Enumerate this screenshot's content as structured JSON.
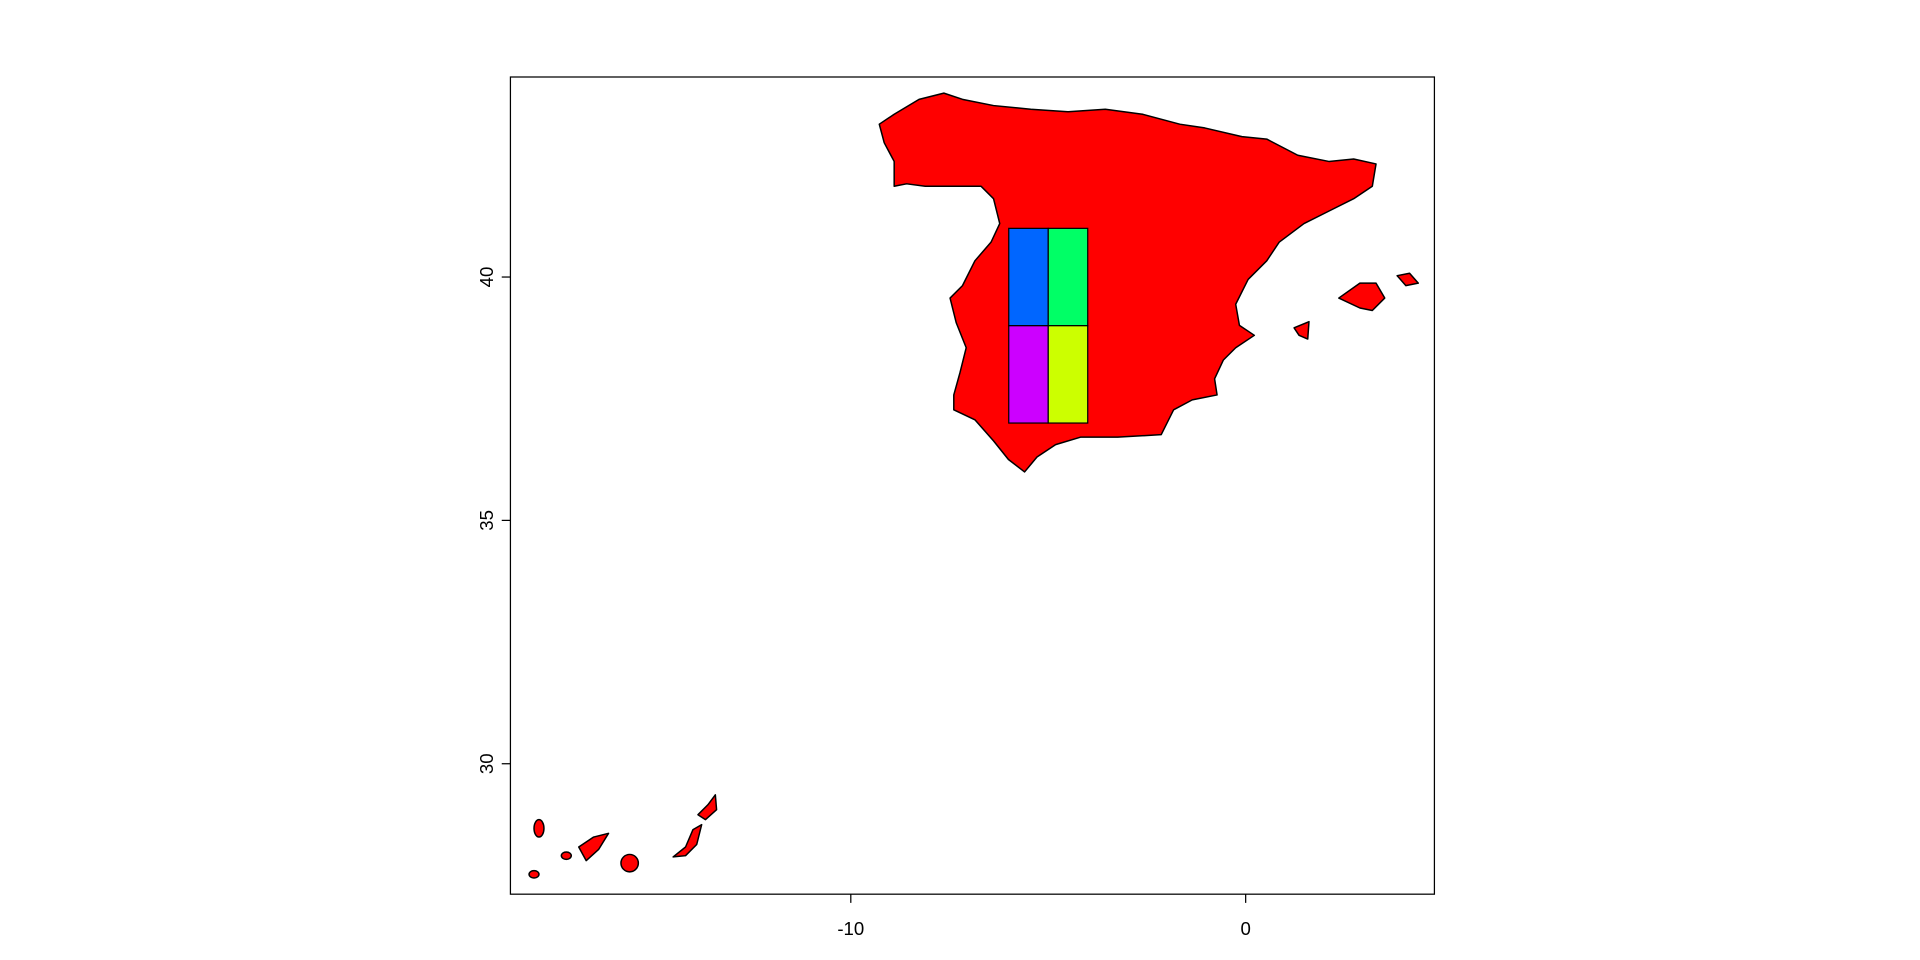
{
  "chart_data": {
    "type": "map",
    "xlim": [
      -18.62,
      4.78
    ],
    "ylim": [
      27.32,
      44.11
    ],
    "xticks": [
      -10,
      0
    ],
    "yticks": [
      30,
      35,
      40
    ],
    "land_color": "#ff0000",
    "cells": [
      {
        "xmin": -6,
        "xmax": -5,
        "ymin": 39,
        "ymax": 41,
        "color": "#0066ff"
      },
      {
        "xmin": -5,
        "xmax": -4,
        "ymin": 39,
        "ymax": 41,
        "color": "#00ff66"
      },
      {
        "xmin": -6,
        "xmax": -5,
        "ymin": 37,
        "ymax": 39,
        "color": "#cc00ff"
      },
      {
        "xmin": -5,
        "xmax": -4,
        "ymin": 37,
        "ymax": 39,
        "color": "#ccff00"
      }
    ]
  }
}
